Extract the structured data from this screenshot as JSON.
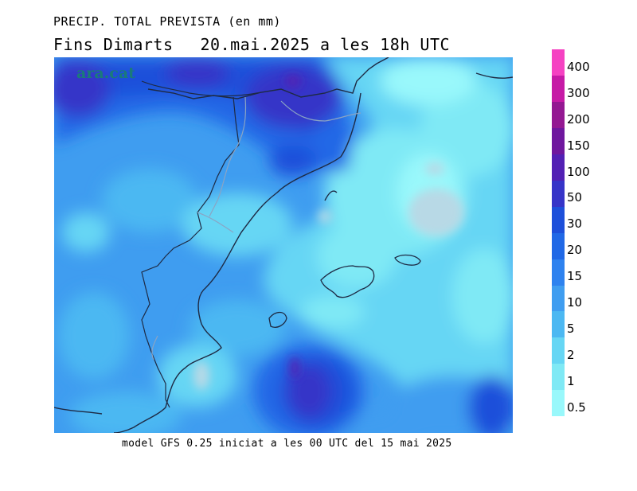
{
  "header": {
    "title": "PRECIP. TOTAL PREVISTA (en mm)",
    "subtitle_left": "Fins Dimarts",
    "subtitle_right": "20.mai.2025 a les 18h UTC"
  },
  "footer": {
    "text": "model GFS 0.25 iniciat a les 00 UTC del 15 mai 2025"
  },
  "map": {
    "watermark": "ara.cat"
  },
  "legend": {
    "labels": [
      "0.5",
      "1",
      "2",
      "5",
      "10",
      "15",
      "20",
      "30",
      "50",
      "100",
      "150",
      "200",
      "300",
      "400"
    ],
    "colors": [
      "#99f8fb",
      "#7fe9f5",
      "#66d6f4",
      "#4cb8f2",
      "#3f9df0",
      "#2e82ef",
      "#2068e6",
      "#1d4fda",
      "#3634c8",
      "#5220b4",
      "#6f179e",
      "#941892",
      "#c61aa6",
      "#f542c2"
    ]
  }
}
